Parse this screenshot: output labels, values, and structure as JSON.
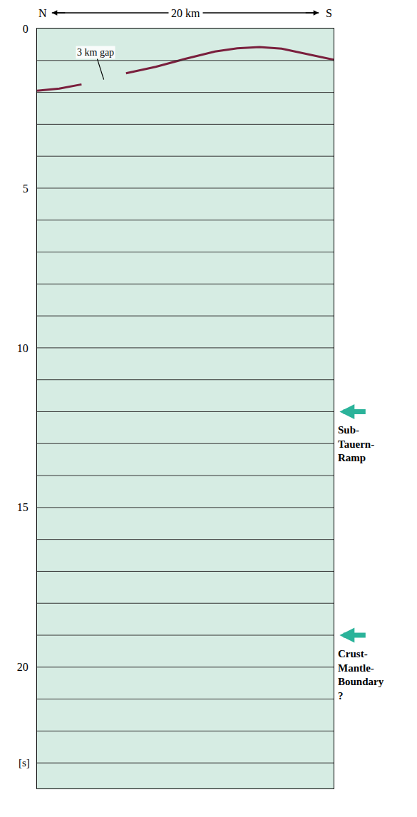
{
  "chart_data": {
    "type": "line",
    "scale": {
      "left": "N",
      "label": "20 km",
      "right": "S"
    },
    "x": [
      0,
      1.5,
      3,
      4.5,
      6,
      8,
      10,
      12,
      13.5,
      15,
      16.5,
      18,
      19,
      20
    ],
    "values": [
      1.95,
      1.88,
      1.75,
      null,
      1.4,
      1.2,
      0.95,
      0.72,
      0.62,
      0.58,
      0.63,
      0.78,
      0.88,
      0.98
    ],
    "color": "#7a1f3d",
    "xlim": [
      0,
      20
    ],
    "ylim": [
      0,
      23.8
    ],
    "yticks": [
      0,
      5,
      10,
      15,
      20
    ],
    "ylabel": "[s]",
    "grid": true,
    "gridlines": [
      1,
      2,
      3,
      4,
      5,
      6,
      7,
      8,
      9,
      10,
      11,
      12,
      13,
      14,
      15,
      16,
      17,
      18,
      19,
      20,
      21,
      22,
      23
    ],
    "tick_labels": "y",
    "annotations": [
      {
        "text": "3 km gap",
        "x": 4.5,
        "y": 1.6
      },
      {
        "text": "Sub-Tauern-Ramp",
        "y": 12
      },
      {
        "text": "Crust-Mantle-Boundary ?",
        "y": 19
      }
    ]
  }
}
